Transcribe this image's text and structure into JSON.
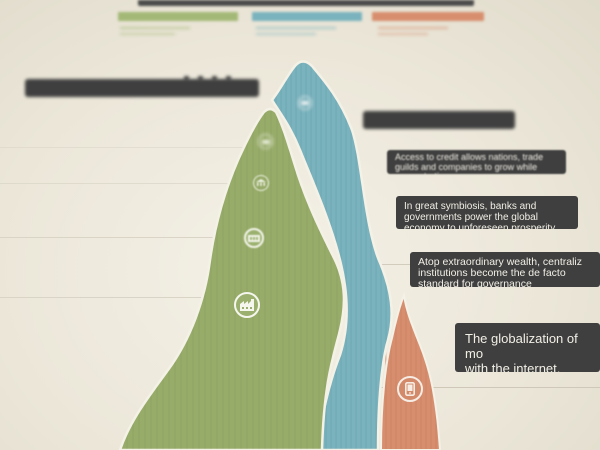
{
  "colors": {
    "background": "#ece8dc",
    "green_stream": "#98ac6a",
    "blue_stream": "#7ab2bd",
    "orange_stream": "#d78e6e",
    "callout_bg": "#3f3f3f",
    "callout_text": "#f2efe6"
  },
  "legend": [
    {
      "color": "#a3b876"
    },
    {
      "color": "#7ab2bd"
    },
    {
      "color": "#d78e6e"
    }
  ],
  "callouts": [
    {
      "text": ""
    },
    {
      "text": ""
    },
    {
      "text": "Access to credit allows nations, trade\nguilds and companies to grow while\nconcentrating power"
    },
    {
      "text": "In great symbiosis, banks and\ngovernments power the global\neconomy to unforeseen prosperity"
    },
    {
      "text": "Atop extraordinary wealth, centraliz\ninstitutions become the de facto\nstandard for governance"
    },
    {
      "text": "The globalization of mo\nwith the internet, creat\nunprecedented scale, o"
    }
  ],
  "icons": [
    {
      "name": "scroll-icon",
      "stream": "blue"
    },
    {
      "name": "coin-icon",
      "stream": "green"
    },
    {
      "name": "bank-icon",
      "stream": "green"
    },
    {
      "name": "ledger-icon",
      "stream": "green"
    },
    {
      "name": "factory-icon",
      "stream": "green"
    },
    {
      "name": "mobile-phone-icon",
      "stream": "orange"
    }
  ]
}
